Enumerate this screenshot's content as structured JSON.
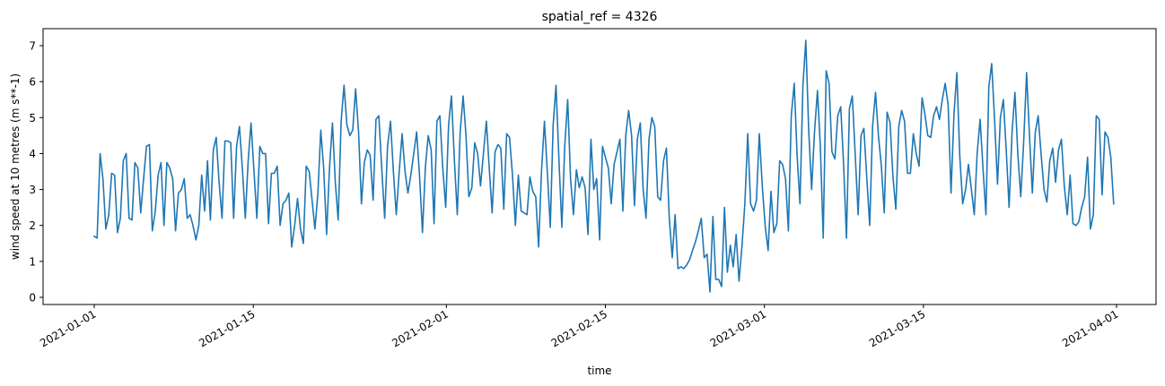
{
  "chart_data": {
    "type": "line",
    "title": "spatial_ref = 4326",
    "xlabel": "time",
    "ylabel": "wind speed at 10 metres (m s**-1)",
    "ylim": [
      -0.15,
      7.45
    ],
    "yticks": [
      0,
      1,
      2,
      3,
      4,
      5,
      6,
      7
    ],
    "xticks": [
      {
        "label": "2021-01-01",
        "day": 0
      },
      {
        "label": "2021-01-15",
        "day": 14
      },
      {
        "label": "2021-02-01",
        "day": 31
      },
      {
        "label": "2021-02-15",
        "day": 45
      },
      {
        "label": "2021-03-01",
        "day": 59
      },
      {
        "label": "2021-03-15",
        "day": 73
      },
      {
        "label": "2021-04-01",
        "day": 90
      }
    ],
    "xlim_days": [
      -4.5,
      92.7
    ],
    "grid": false,
    "legend": null,
    "line_color": "#1f77b4",
    "x_step_days": 0.25,
    "x_start_day": 0,
    "series": [
      {
        "name": "wind speed",
        "values": [
          1.7,
          1.65,
          4.0,
          3.3,
          1.9,
          2.3,
          3.45,
          3.4,
          1.8,
          2.2,
          3.8,
          4.0,
          2.2,
          2.15,
          3.75,
          3.6,
          2.35,
          3.3,
          4.2,
          4.25,
          1.85,
          2.4,
          3.4,
          3.75,
          2.0,
          3.75,
          3.6,
          3.3,
          1.85,
          2.9,
          3.0,
          3.3,
          2.2,
          2.3,
          2.0,
          1.6,
          2.0,
          3.4,
          2.4,
          3.8,
          2.15,
          4.1,
          4.45,
          3.2,
          2.2,
          4.35,
          4.35,
          4.3,
          2.2,
          4.2,
          4.75,
          3.6,
          2.2,
          3.8,
          4.85,
          3.5,
          2.2,
          4.2,
          4.0,
          4.0,
          2.05,
          3.45,
          3.45,
          3.65,
          2.0,
          2.6,
          2.7,
          2.9,
          1.4,
          2.0,
          2.75,
          1.9,
          1.5,
          3.65,
          3.5,
          2.7,
          1.9,
          2.9,
          4.65,
          3.6,
          1.75,
          3.6,
          4.85,
          3.2,
          2.15,
          4.9,
          5.9,
          4.8,
          4.5,
          4.65,
          5.8,
          4.6,
          2.6,
          3.75,
          4.1,
          3.95,
          2.7,
          4.95,
          5.05,
          3.55,
          2.2,
          4.2,
          4.9,
          3.5,
          2.3,
          3.5,
          4.55,
          3.5,
          2.9,
          3.4,
          4.0,
          4.6,
          3.4,
          1.8,
          3.6,
          4.5,
          4.1,
          2.05,
          4.9,
          5.05,
          3.6,
          2.5,
          4.8,
          5.6,
          3.8,
          2.3,
          4.6,
          5.6,
          4.5,
          2.8,
          3.05,
          4.3,
          4.0,
          3.1,
          4.0,
          4.9,
          3.6,
          2.35,
          4.05,
          4.25,
          4.15,
          2.45,
          4.55,
          4.45,
          3.4,
          2.0,
          3.4,
          2.4,
          2.35,
          2.3,
          3.35,
          2.95,
          2.8,
          1.4,
          3.5,
          4.9,
          3.5,
          1.95,
          4.8,
          5.9,
          3.8,
          1.95,
          4.2,
          5.5,
          3.3,
          2.3,
          3.55,
          3.05,
          3.35,
          3.05,
          1.75,
          4.4,
          3.0,
          3.3,
          1.6,
          4.2,
          3.9,
          3.6,
          2.6,
          3.7,
          4.05,
          4.4,
          2.4,
          4.5,
          5.2,
          4.5,
          2.55,
          4.4,
          4.85,
          3.0,
          2.2,
          4.4,
          5.0,
          4.75,
          2.8,
          2.7,
          3.8,
          4.15,
          2.2,
          1.1,
          2.3,
          0.8,
          0.85,
          0.8,
          0.9,
          1.05,
          1.3,
          1.55,
          1.85,
          2.2,
          1.1,
          1.2,
          0.15,
          2.25,
          0.5,
          0.5,
          0.3,
          2.5,
          0.7,
          1.45,
          0.85,
          1.75,
          0.45,
          1.4,
          2.6,
          4.55,
          2.6,
          2.4,
          2.7,
          4.55,
          3.1,
          2.0,
          1.3,
          2.95,
          1.8,
          2.05,
          3.8,
          3.7,
          3.3,
          1.85,
          5.05,
          5.95,
          3.95,
          2.6,
          5.9,
          7.15,
          4.6,
          3.0,
          4.6,
          5.75,
          4.2,
          1.65,
          6.3,
          5.95,
          4.05,
          3.85,
          5.05,
          5.3,
          3.7,
          1.65,
          5.25,
          5.6,
          4.0,
          2.3,
          4.5,
          4.7,
          3.3,
          2.0,
          4.75,
          5.7,
          4.5,
          3.65,
          2.35,
          5.15,
          4.85,
          3.35,
          2.45,
          4.75,
          5.2,
          4.9,
          3.45,
          3.45,
          4.55,
          4.0,
          3.65,
          5.55,
          5.1,
          4.5,
          4.45,
          5.05,
          5.3,
          4.95,
          5.5,
          5.95,
          5.35,
          2.9,
          5.1,
          6.25,
          3.95,
          2.6,
          3.0,
          3.7,
          3.0,
          2.3,
          4.0,
          4.95,
          3.6,
          2.3,
          5.85,
          6.5,
          4.9,
          3.15,
          5.0,
          5.5,
          4.1,
          2.5,
          4.6,
          5.7,
          4.0,
          2.8,
          4.3,
          6.25,
          4.5,
          2.9,
          4.6,
          5.05,
          4.0,
          3.0,
          2.65,
          3.8,
          4.15,
          3.2,
          4.1,
          4.4,
          3.1,
          2.3,
          3.4,
          2.05,
          2.0,
          2.1,
          2.5,
          2.8,
          3.9,
          1.9,
          2.3,
          5.05,
          4.95,
          2.85,
          4.6,
          4.45,
          3.9,
          2.6
        ]
      }
    ]
  }
}
